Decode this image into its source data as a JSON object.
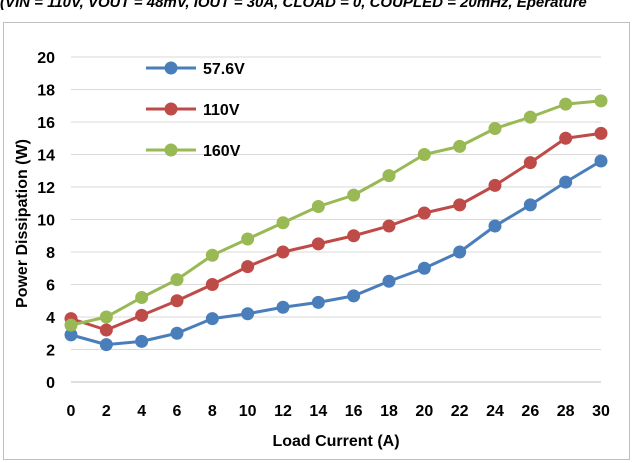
{
  "caption": "(VIN = 110V, VOUT = 48mV, IOUT = 30A, CLOAD = 0, COUPLED = 20mHz, Eperature",
  "chart_data": {
    "type": "line",
    "title": "",
    "xlabel": "Load Current (A)",
    "ylabel": "Power Dissipation (W)",
    "xlim": [
      0,
      30
    ],
    "ylim": [
      0,
      20
    ],
    "xticks": [
      0,
      2,
      4,
      6,
      8,
      10,
      12,
      14,
      16,
      18,
      20,
      22,
      24,
      26,
      28,
      30
    ],
    "yticks": [
      0,
      2,
      4,
      6,
      8,
      10,
      12,
      14,
      16,
      18,
      20
    ],
    "grid": true,
    "legend_position": "top-left",
    "x": [
      0,
      2,
      4,
      6,
      8,
      10,
      12,
      14,
      16,
      18,
      20,
      22,
      24,
      26,
      28,
      30
    ],
    "series": [
      {
        "name": "57.6V",
        "color": "#4a7ebb",
        "values": [
          2.9,
          2.3,
          2.5,
          3.0,
          3.9,
          4.2,
          4.6,
          4.9,
          5.3,
          6.2,
          7.0,
          8.0,
          9.6,
          10.9,
          12.3,
          13.6
        ]
      },
      {
        "name": "110V",
        "color": "#be4b48",
        "values": [
          3.9,
          3.2,
          4.1,
          5.0,
          6.0,
          7.1,
          8.0,
          8.5,
          9.0,
          9.6,
          10.4,
          10.9,
          12.1,
          13.5,
          15.0,
          15.3
        ]
      },
      {
        "name": "160V",
        "color": "#98b954",
        "values": [
          3.5,
          4.0,
          5.2,
          6.3,
          7.8,
          8.8,
          9.8,
          10.8,
          11.5,
          12.7,
          14.0,
          14.5,
          15.6,
          16.3,
          17.1,
          17.3
        ]
      }
    ]
  }
}
